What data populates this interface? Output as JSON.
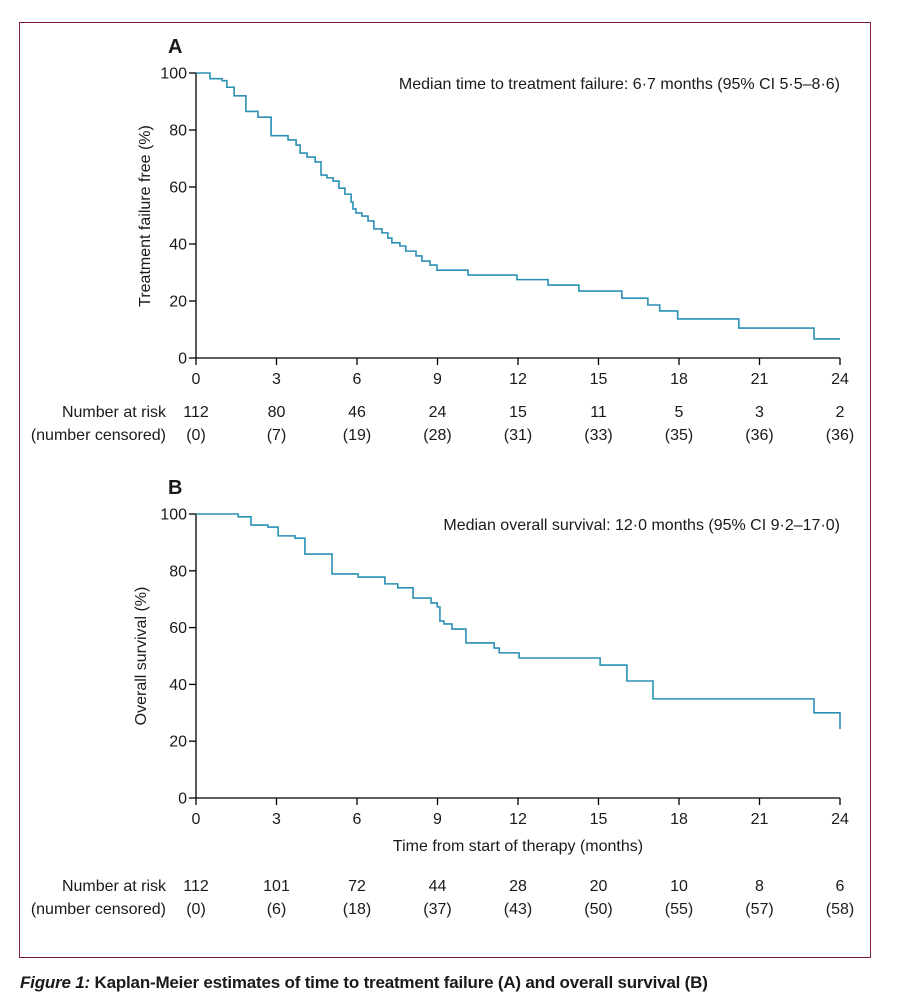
{
  "caption": {
    "figure_number": "Figure 1:",
    "text": " Kaplan-Meier estimates of time to treatment failure (A) and overall survival (B)"
  },
  "colors": {
    "curve": "#2a8fb5",
    "frame": "#7a1f3d",
    "axis": "#000000"
  },
  "risk_table_labels": {
    "number_at_risk": "Number at risk",
    "number_censored": "(number censored)"
  },
  "chart_data": [
    {
      "type": "line",
      "step": true,
      "panel_label": "A",
      "title": "",
      "annotation": "Median time to treatment failure: 6·7 months (95% CI 5·5–8·6)",
      "xlabel": "",
      "ylabel": "Treatment failure free (%)",
      "xlim": [
        0,
        24
      ],
      "ylim": [
        0,
        100
      ],
      "xticks": [
        0,
        3,
        6,
        9,
        12,
        15,
        18,
        21,
        24
      ],
      "yticks": [
        0,
        20,
        40,
        60,
        80,
        100
      ],
      "grid": false,
      "series": [
        {
          "name": "Treatment failure free",
          "x": [
            0,
            0.52,
            0.97,
            1.15,
            1.42,
            1.86,
            2.31,
            2.8,
            3.43,
            3.73,
            3.88,
            4.14,
            4.44,
            4.66,
            4.88,
            5.11,
            5.33,
            5.55,
            5.78,
            5.85,
            5.96,
            6.18,
            6.41,
            6.63,
            6.93,
            7.15,
            7.3,
            7.6,
            7.82,
            7.97,
            8.2,
            8.42,
            8.72,
            8.98,
            9.91,
            10.14,
            10.58,
            11.07,
            11.96,
            13.12,
            14.27,
            15.87,
            16.84,
            17.28,
            17.95,
            20.23,
            23.03
          ],
          "y": [
            100,
            98.0,
            97.3,
            95.0,
            92.0,
            86.5,
            84.5,
            78.0,
            76.5,
            74.7,
            71.9,
            70.5,
            68.8,
            64.2,
            63.2,
            62.1,
            59.6,
            57.5,
            54.7,
            52.3,
            50.9,
            49.8,
            48.1,
            45.3,
            43.9,
            42.1,
            40.4,
            39.3,
            37.5,
            37.5,
            35.8,
            34.0,
            32.6,
            30.8,
            30.8,
            29.1,
            29.1,
            29.1,
            27.5,
            25.6,
            23.5,
            21.0,
            18.6,
            16.5,
            13.7,
            10.5,
            6.7
          ],
          "end_x": 24
        }
      ],
      "risk_table": {
        "times": [
          0,
          3,
          6,
          9,
          12,
          15,
          18,
          21,
          24
        ],
        "at_risk": [
          "112",
          "80",
          "46",
          "24",
          "15",
          "11",
          "5",
          "3",
          "2"
        ],
        "censored": [
          "(0)",
          "(7)",
          "(19)",
          "(28)",
          "(31)",
          "(33)",
          "(35)",
          "(36)",
          "(36)"
        ]
      }
    },
    {
      "type": "line",
      "step": true,
      "panel_label": "B",
      "title": "",
      "annotation": "Median overall survival: 12·0 months (95% CI 9·2–17·0)",
      "xlabel": "Time from start of therapy (months)",
      "ylabel": "Overall survival (%)",
      "xlim": [
        0,
        24
      ],
      "ylim": [
        0,
        100
      ],
      "xticks": [
        0,
        3,
        6,
        9,
        12,
        15,
        18,
        21,
        24
      ],
      "yticks": [
        0,
        20,
        40,
        60,
        80,
        100
      ],
      "grid": false,
      "series": [
        {
          "name": "Overall survival",
          "x": [
            0,
            1.57,
            2.05,
            2.68,
            3.06,
            3.69,
            4.06,
            5.07,
            6.04,
            7.04,
            7.52,
            8.09,
            8.76,
            8.99,
            9.09,
            9.24,
            9.54,
            10.06,
            11.11,
            11.3,
            12.04,
            15.06,
            16.06,
            17.03,
            23.03,
            24.0
          ],
          "y": [
            100,
            99.0,
            96.1,
            95.4,
            92.3,
            91.5,
            85.9,
            78.9,
            77.8,
            75.4,
            74.0,
            70.4,
            68.7,
            67.3,
            62.3,
            61.3,
            59.5,
            54.6,
            52.8,
            51.1,
            49.3,
            46.8,
            41.2,
            34.9,
            30.0,
            24.3
          ],
          "end_x": 24
        }
      ],
      "risk_table": {
        "times": [
          0,
          3,
          6,
          9,
          12,
          15,
          18,
          21,
          24
        ],
        "at_risk": [
          "112",
          "101",
          "72",
          "44",
          "28",
          "20",
          "10",
          "8",
          "6"
        ],
        "censored": [
          "(0)",
          "(6)",
          "(18)",
          "(37)",
          "(43)",
          "(50)",
          "(55)",
          "(57)",
          "(58)"
        ]
      }
    }
  ]
}
